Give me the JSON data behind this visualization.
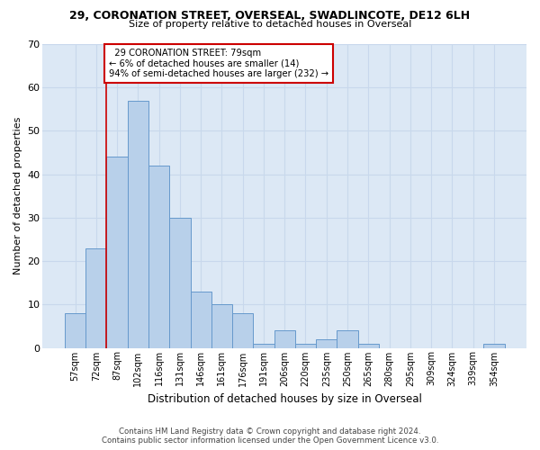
{
  "title1": "29, CORONATION STREET, OVERSEAL, SWADLINCOTE, DE12 6LH",
  "title2": "Size of property relative to detached houses in Overseal",
  "xlabel": "Distribution of detached houses by size in Overseal",
  "ylabel": "Number of detached properties",
  "bar_color": "#b8d0ea",
  "bar_edge_color": "#6699cc",
  "categories": [
    "57sqm",
    "72sqm",
    "87sqm",
    "102sqm",
    "116sqm",
    "131sqm",
    "146sqm",
    "161sqm",
    "176sqm",
    "191sqm",
    "206sqm",
    "220sqm",
    "235sqm",
    "250sqm",
    "265sqm",
    "280sqm",
    "295sqm",
    "309sqm",
    "324sqm",
    "339sqm",
    "354sqm"
  ],
  "values": [
    8,
    23,
    44,
    57,
    42,
    30,
    13,
    10,
    8,
    1,
    4,
    1,
    2,
    4,
    1,
    0,
    0,
    0,
    0,
    0,
    1
  ],
  "ylim": [
    0,
    70
  ],
  "yticks": [
    0,
    10,
    20,
    30,
    40,
    50,
    60,
    70
  ],
  "property_label": "29 CORONATION STREET: 79sqm",
  "pct_smaller": "6% of detached houses are smaller (14)",
  "pct_larger": "94% of semi-detached houses are larger (232)",
  "annotation_box_color": "#ffffff",
  "annotation_border_color": "#cc0000",
  "grid_color": "#c8d8ec",
  "background_color": "#dce8f5",
  "vline_x_idx": 1.5,
  "footer1": "Contains HM Land Registry data © Crown copyright and database right 2024.",
  "footer2": "Contains public sector information licensed under the Open Government Licence v3.0."
}
